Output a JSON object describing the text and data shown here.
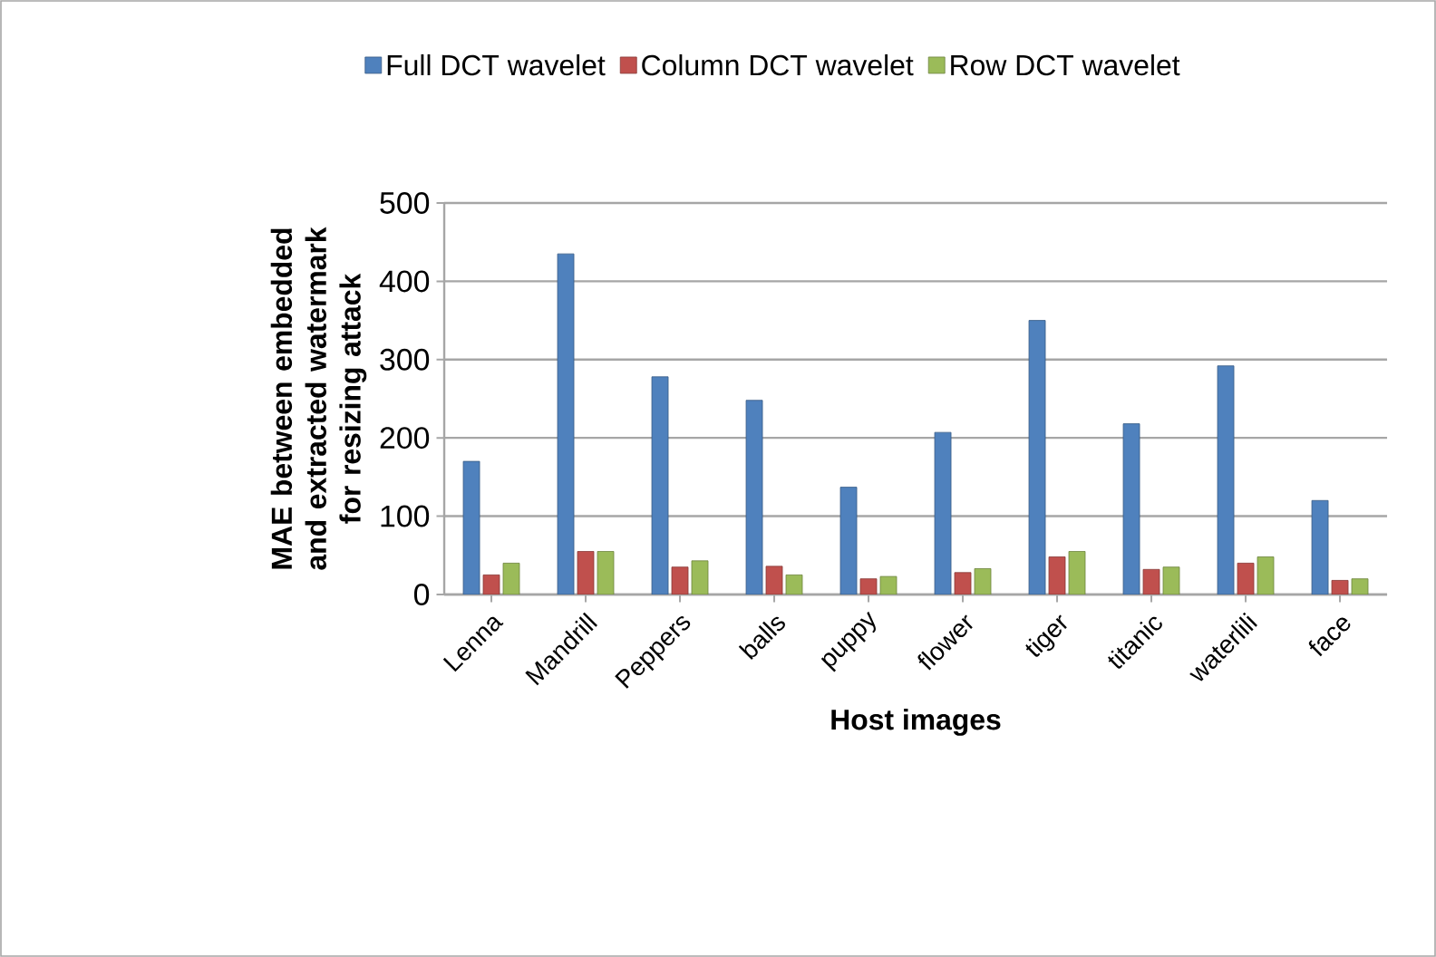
{
  "chart_data": {
    "type": "bar",
    "categories": [
      "Lenna",
      "Mandrill",
      "Peppers",
      "balls",
      "puppy",
      "flower",
      "tiger",
      "titanic",
      "waterlili",
      "face"
    ],
    "series": [
      {
        "name": "Full DCT wavelet",
        "color": "#4f81bd",
        "values": [
          170,
          435,
          278,
          248,
          137,
          207,
          350,
          218,
          292,
          120
        ]
      },
      {
        "name": "Column DCT wavelet",
        "color": "#c0504d",
        "values": [
          25,
          55,
          35,
          36,
          20,
          28,
          48,
          32,
          40,
          18
        ]
      },
      {
        "name": "Row DCT wavelet",
        "color": "#9bbb59",
        "values": [
          40,
          55,
          43,
          25,
          23,
          33,
          55,
          35,
          48,
          20
        ]
      }
    ],
    "xlabel": "Host images",
    "ylabel": "MAE between embedded and extracted watermark for resizing attack",
    "ylim": [
      0,
      500
    ],
    "yticks": [
      0,
      100,
      200,
      300,
      400,
      500
    ],
    "grid": "y",
    "legend": "top"
  }
}
